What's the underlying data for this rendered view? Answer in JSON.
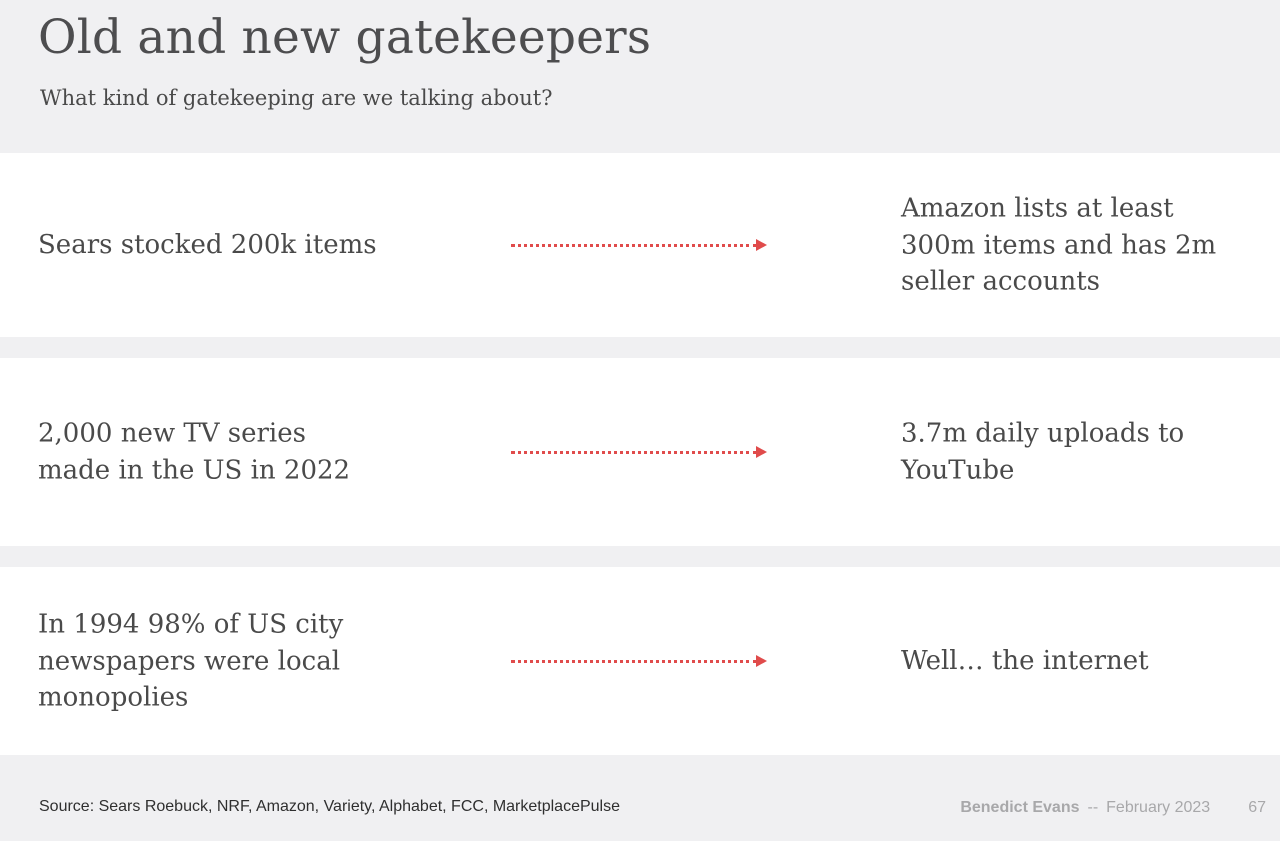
{
  "header": {
    "title": "Old and new gatekeepers",
    "subtitle": "What kind of gatekeeping are we talking about?"
  },
  "rows": [
    {
      "old": "Sears stocked 200k items",
      "new": "Amazon lists at least\n300m items and has 2m\nseller accounts"
    },
    {
      "old": "2,000 new TV series\nmade in the US in 2022",
      "new": "3.7m daily uploads to\nYouTube"
    },
    {
      "old": "In 1994 98% of US city\nnewspapers were local\nmonopolies",
      "new": "Well… the internet"
    }
  ],
  "footer": {
    "source": "Source: Sears Roebuck, NRF, Amazon, Variety, Alphabet, FCC, MarketplacePulse",
    "author": "Benedict Evans",
    "separator": "--",
    "date": "February 2023",
    "page_number": "67"
  },
  "colors": {
    "arrow": "#e04b4b",
    "background": "#f0f0f2",
    "panel": "#ffffff"
  }
}
